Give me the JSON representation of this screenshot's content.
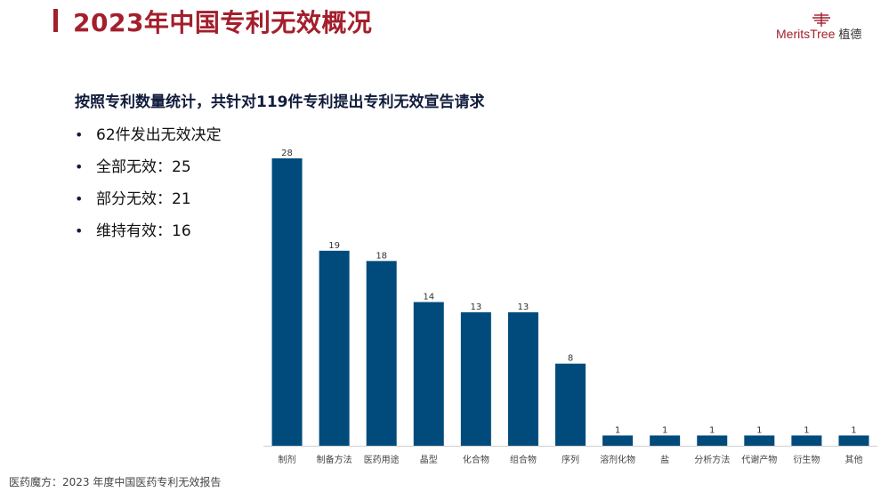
{
  "title": "2023年中国专利无效概况",
  "logo": {
    "brand": "MeritsTree",
    "brand_cn": "植德"
  },
  "headline": "按照专利数量统计，共针对119件专利提出专利无效宣告请求",
  "bullets": [
    "62件发出无效决定",
    "全部无效：25",
    "部分无效：21",
    "维持有效：16"
  ],
  "source": "医药魔方：2023 年度中国医药专利无效报告",
  "colors": {
    "bar": "#004b7c",
    "title": "#a31f2c",
    "headline": "#111c3d"
  },
  "chart_data": {
    "type": "bar",
    "title": "",
    "xlabel": "",
    "ylabel": "",
    "categories": [
      "制剂",
      "制备方法",
      "医药用途",
      "晶型",
      "化合物",
      "组合物",
      "序列",
      "溶剂化物",
      "盐",
      "分析方法",
      "代谢产物",
      "衍生物",
      "其他"
    ],
    "values": [
      28,
      19,
      18,
      14,
      13,
      13,
      8,
      1,
      1,
      1,
      1,
      1,
      1
    ],
    "ylim": [
      0,
      28
    ],
    "grid": false,
    "legend": "none"
  }
}
